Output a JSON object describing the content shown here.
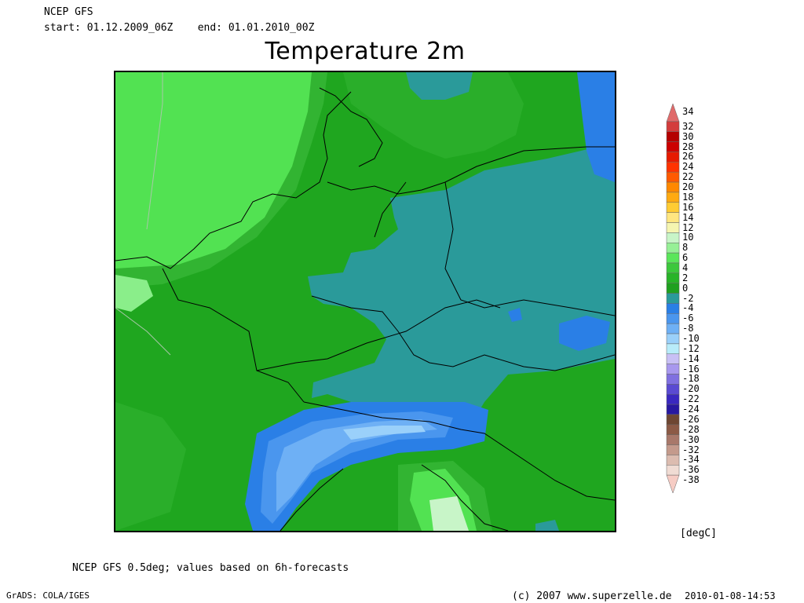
{
  "header": {
    "source": "NCEP GFS",
    "start": "start: 01.12.2009_06Z",
    "end": "end: 01.01.2010_00Z"
  },
  "title": "Temperature 2m",
  "legend": {
    "units": "[degC]",
    "bands": [
      {
        "label": "34",
        "color": "#e06a6a"
      },
      {
        "label": "32",
        "color": "#d33c3c"
      },
      {
        "label": "30",
        "color": "#b40000"
      },
      {
        "label": "28",
        "color": "#cc0000"
      },
      {
        "label": "26",
        "color": "#e61a00"
      },
      {
        "label": "24",
        "color": "#ff3300"
      },
      {
        "label": "22",
        "color": "#ff5a00"
      },
      {
        "label": "20",
        "color": "#ff8800"
      },
      {
        "label": "18",
        "color": "#ffaa11"
      },
      {
        "label": "16",
        "color": "#ffcc33"
      },
      {
        "label": "14",
        "color": "#ffe680"
      },
      {
        "label": "12",
        "color": "#f5f5b0"
      },
      {
        "label": "10",
        "color": "#c8f5c8"
      },
      {
        "label": "8",
        "color": "#96f096"
      },
      {
        "label": "6",
        "color": "#5ae65a"
      },
      {
        "label": "4",
        "color": "#3cc83c"
      },
      {
        "label": "2",
        "color": "#28b428"
      },
      {
        "label": "0",
        "color": "#1fa01f"
      },
      {
        "label": "-2",
        "color": "#2a9a9a"
      },
      {
        "label": "-4",
        "color": "#2a7fe6"
      },
      {
        "label": "-6",
        "color": "#4a96ee"
      },
      {
        "label": "-8",
        "color": "#6eb0f5"
      },
      {
        "label": "-10",
        "color": "#9ad0fa"
      },
      {
        "label": "-12",
        "color": "#b8ecfa"
      },
      {
        "label": "-14",
        "color": "#c8c0f5"
      },
      {
        "label": "-16",
        "color": "#a898ee"
      },
      {
        "label": "-18",
        "color": "#8070e0"
      },
      {
        "label": "-20",
        "color": "#5a4ad2"
      },
      {
        "label": "-22",
        "color": "#3a28c0"
      },
      {
        "label": "-24",
        "color": "#2818a0"
      },
      {
        "label": "-26",
        "color": "#6e4632"
      },
      {
        "label": "-28",
        "color": "#8c5a46"
      },
      {
        "label": "-30",
        "color": "#a8786a"
      },
      {
        "label": "-32",
        "color": "#c49a8c"
      },
      {
        "label": "-34",
        "color": "#dcbcb0"
      },
      {
        "label": "-36",
        "color": "#f0dcd4"
      },
      {
        "label": "-38",
        "color": "#f6ccc4"
      }
    ]
  },
  "footnote": "NCEP GFS 0.5deg; values based on 6h-forecasts",
  "credits": {
    "grads": "GrADS: COLA/IGES",
    "copyright": "(c) 2007 www.superzelle.de",
    "timestamp": "2010-01-08-14:53"
  }
}
